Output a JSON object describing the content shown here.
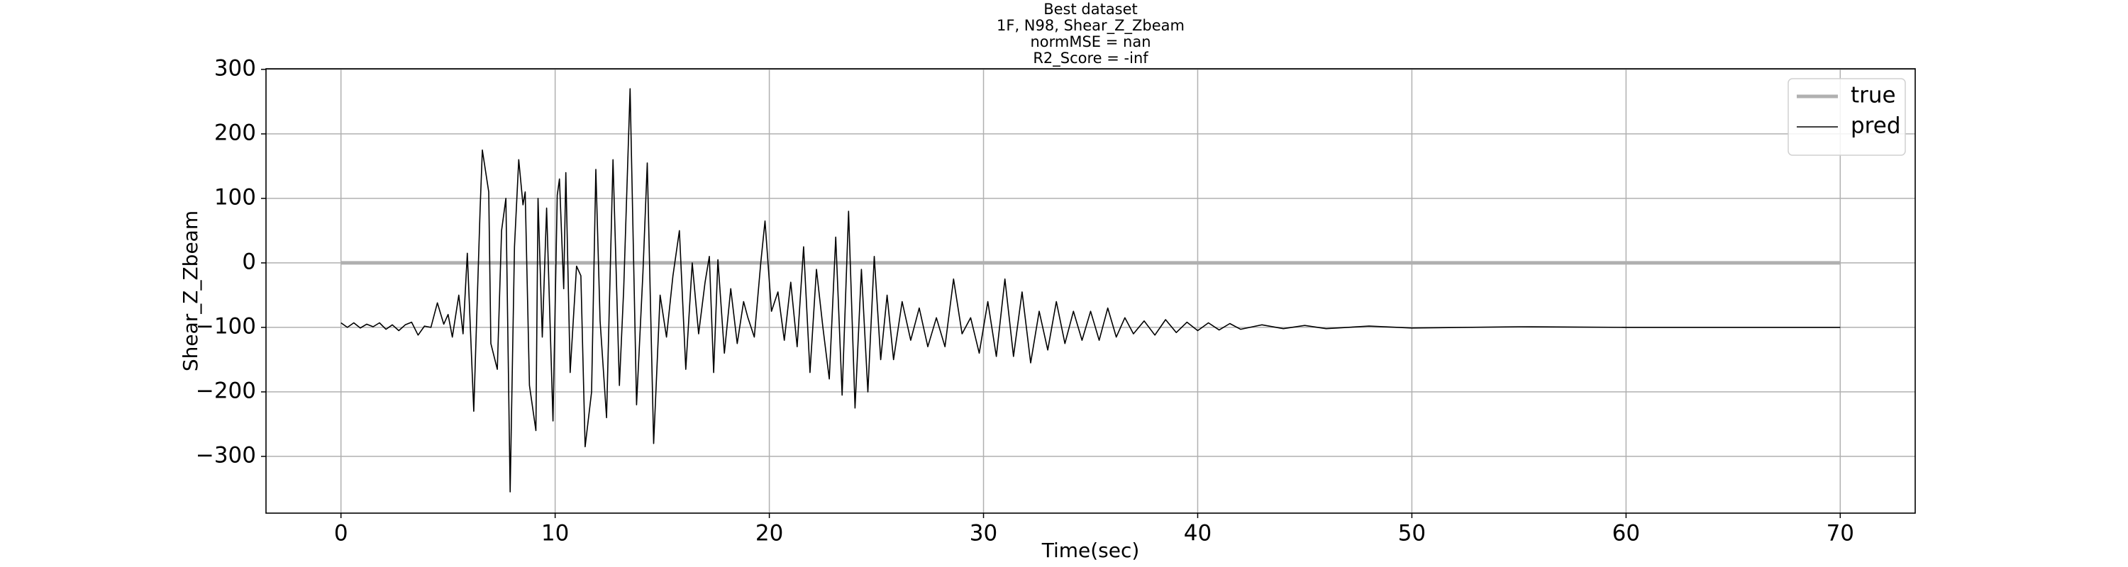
{
  "chart_data": {
    "type": "line",
    "title": [
      "Best dataset",
      "1F, N98, Shear_Z_Zbeam",
      "normMSE = nan",
      "R2_Score = -inf"
    ],
    "xlabel": "Time(sec)",
    "ylabel": "Shear_Z_Zbeam",
    "xlim": [
      -3.5,
      73.5
    ],
    "ylim": [
      -388,
      301
    ],
    "xticks": [
      0,
      10,
      20,
      30,
      40,
      50,
      60,
      70
    ],
    "yticks": [
      {
        "value": -300,
        "label": "−300"
      },
      {
        "value": -200,
        "label": "−200"
      },
      {
        "value": -100,
        "label": "−100"
      },
      0,
      100,
      200,
      300
    ],
    "grid": true,
    "legend": "upper right",
    "series": [
      {
        "name": "true",
        "color": "#b0b0b0",
        "linewidth": 5,
        "x": [
          0,
          70
        ],
        "values": [
          0,
          0
        ]
      },
      {
        "name": "pred",
        "color": "#000000",
        "linewidth": 1.6,
        "x": [
          0.0,
          0.3,
          0.6,
          0.9,
          1.2,
          1.5,
          1.8,
          2.1,
          2.4,
          2.7,
          3.0,
          3.3,
          3.6,
          3.9,
          4.2,
          4.5,
          4.8,
          5.0,
          5.2,
          5.5,
          5.7,
          5.9,
          6.2,
          6.5,
          6.6,
          6.9,
          7.0,
          7.3,
          7.5,
          7.7,
          7.9,
          8.1,
          8.3,
          8.5,
          8.6,
          8.8,
          9.1,
          9.2,
          9.4,
          9.6,
          9.9,
          10.1,
          10.2,
          10.4,
          10.5,
          10.7,
          11.0,
          11.2,
          11.4,
          11.7,
          11.9,
          12.1,
          12.4,
          12.7,
          13.0,
          13.2,
          13.5,
          13.8,
          14.1,
          14.3,
          14.6,
          14.9,
          15.2,
          15.5,
          15.8,
          16.1,
          16.4,
          16.7,
          17.0,
          17.2,
          17.4,
          17.6,
          17.9,
          18.2,
          18.5,
          18.8,
          19.0,
          19.3,
          19.6,
          19.8,
          20.1,
          20.4,
          20.7,
          21.0,
          21.3,
          21.6,
          21.9,
          22.2,
          22.5,
          22.8,
          23.1,
          23.4,
          23.7,
          24.0,
          24.3,
          24.6,
          24.9,
          25.2,
          25.5,
          25.8,
          26.2,
          26.6,
          27.0,
          27.4,
          27.8,
          28.2,
          28.6,
          29.0,
          29.4,
          29.8,
          30.2,
          30.6,
          31.0,
          31.4,
          31.8,
          32.2,
          32.6,
          33.0,
          33.4,
          33.8,
          34.2,
          34.6,
          35.0,
          35.4,
          35.8,
          36.2,
          36.6,
          37.0,
          37.5,
          38.0,
          38.5,
          39.0,
          39.5,
          40.0,
          40.5,
          41.0,
          41.5,
          42.0,
          43.0,
          44.0,
          45.0,
          46.0,
          48.0,
          50.0,
          55.0,
          60.0,
          70.0
        ],
        "values": [
          -93,
          -100,
          -93,
          -101,
          -95,
          -99,
          -93,
          -103,
          -96,
          -105,
          -96,
          -92,
          -112,
          -98,
          -100,
          -62,
          -95,
          -80,
          -115,
          -50,
          -110,
          15,
          -230,
          85,
          175,
          110,
          -125,
          -165,
          50,
          100,
          -355,
          25,
          160,
          90,
          110,
          -190,
          -260,
          100,
          -115,
          85,
          -245,
          105,
          130,
          -40,
          140,
          -170,
          -5,
          -20,
          -285,
          -200,
          145,
          -90,
          -240,
          160,
          -190,
          -40,
          270,
          -220,
          -15,
          155,
          -280,
          -50,
          -115,
          -20,
          50,
          -165,
          0,
          -110,
          -30,
          10,
          -170,
          5,
          -140,
          -40,
          -125,
          -60,
          -85,
          -115,
          0,
          65,
          -75,
          -45,
          -120,
          -30,
          -130,
          25,
          -170,
          -10,
          -100,
          -180,
          40,
          -205,
          80,
          -225,
          -10,
          -200,
          10,
          -150,
          -50,
          -150,
          -60,
          -120,
          -70,
          -130,
          -85,
          -130,
          -25,
          -110,
          -85,
          -140,
          -60,
          -145,
          -25,
          -145,
          -45,
          -155,
          -75,
          -135,
          -60,
          -125,
          -75,
          -120,
          -75,
          -120,
          -70,
          -115,
          -85,
          -110,
          -90,
          -112,
          -88,
          -108,
          -92,
          -105,
          -93,
          -104,
          -94,
          -103,
          -96,
          -102,
          -97,
          -102,
          -98,
          -101,
          -99,
          -100,
          -100
        ]
      }
    ]
  }
}
